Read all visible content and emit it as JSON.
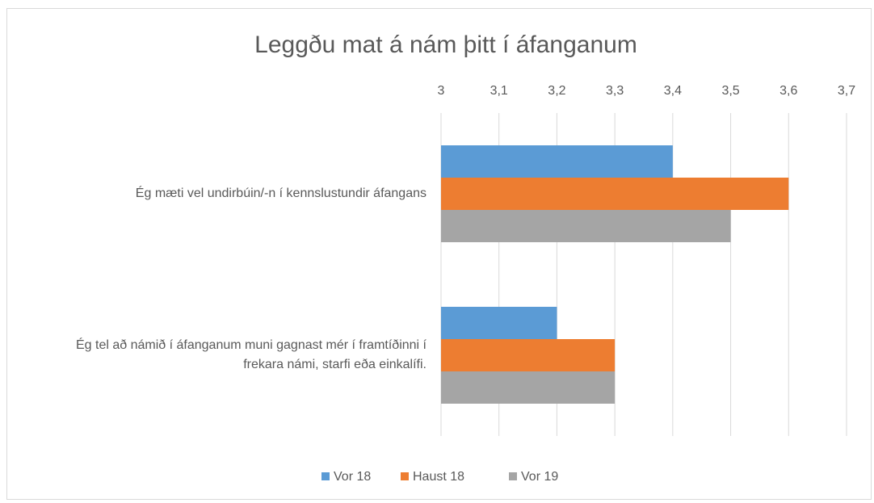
{
  "chart_data": {
    "type": "bar",
    "orientation": "horizontal",
    "title": "Leggðu mat á nám þitt í áfanganum",
    "categories": [
      "Ég mæti vel undirbúin/-n í kennslustundir áfangans",
      "Ég tel að námið í áfanganum muni gagnast mér í framtíðinni í frekara námi, starfi eða einkalífi."
    ],
    "series": [
      {
        "name": "Vor 18",
        "color": "#5b9bd5",
        "values": [
          3.4,
          3.2
        ]
      },
      {
        "name": "Haust 18",
        "color": "#ed7d31",
        "values": [
          3.6,
          3.3
        ]
      },
      {
        "name": "Vor 19",
        "color": "#a5a5a5",
        "values": [
          3.5,
          3.3
        ]
      }
    ],
    "xlim": [
      3,
      3.7
    ],
    "xticks": [
      3,
      {
        "value": 3.1,
        "label": "3,1"
      },
      {
        "value": 3.2,
        "label": "3,2"
      },
      {
        "value": 3.3,
        "label": "3,3"
      },
      {
        "value": 3.4,
        "label": "3,4"
      },
      {
        "value": 3.5,
        "label": "3,5"
      },
      {
        "value": 3.6,
        "label": "3,6"
      },
      {
        "value": 3.7,
        "label": "3,7"
      }
    ],
    "grid": true,
    "legend": "bottom"
  }
}
